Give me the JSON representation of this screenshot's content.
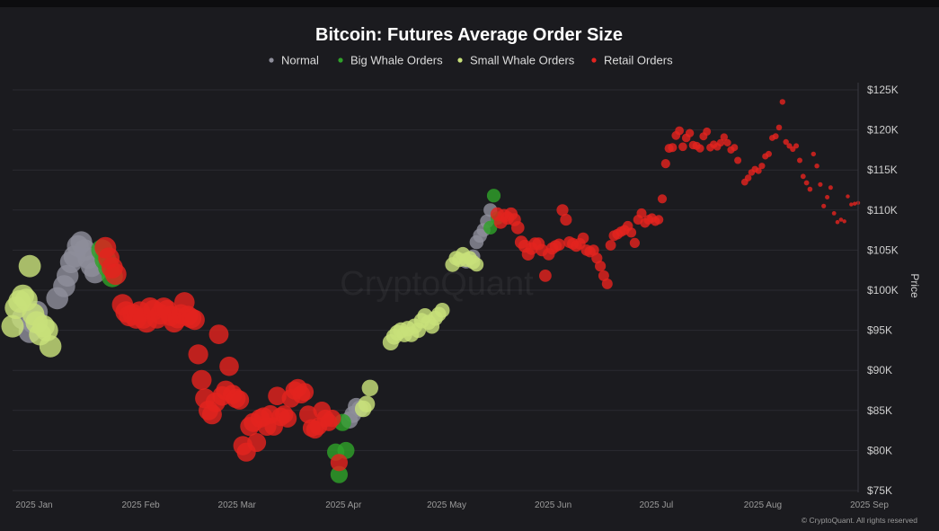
{
  "chart_data": {
    "type": "scatter",
    "title": "Bitcoin: Futures Average Order Size",
    "ylabel": "Price",
    "xlabel": "",
    "x_ticks": [
      "2025 Jan",
      "2025 Feb",
      "2025 Mar",
      "2025 Apr",
      "2025 May",
      "2025 Jun",
      "2025 Jul",
      "2025 Aug",
      "2025 Sep"
    ],
    "y_ticks": [
      "$125K",
      "$120K",
      "$115K",
      "$110K",
      "$105K",
      "$100K",
      "$95K",
      "$90K",
      "$85K",
      "$80K",
      "$75K"
    ],
    "x_range": [
      "2025-01-01",
      "2025-09-04"
    ],
    "y_range": [
      75000,
      125000
    ],
    "y_axis_position": "right",
    "grid": "horizontal",
    "legend_position": "top-center",
    "watermark": "CryptoQuant",
    "credit": "© CryptoQuant. All rights reserved",
    "series": [
      {
        "name": "Normal",
        "color": "#8e8e9a",
        "points": [
          [
            "2025-01-04",
            96500
          ],
          [
            "2025-01-06",
            94800
          ],
          [
            "2025-01-07",
            96000
          ],
          [
            "2025-01-08",
            97300
          ],
          [
            "2025-01-14",
            99000
          ],
          [
            "2025-01-16",
            100500
          ],
          [
            "2025-01-17",
            101800
          ],
          [
            "2025-01-18",
            103500
          ],
          [
            "2025-01-19",
            104200
          ],
          [
            "2025-01-20",
            105500
          ],
          [
            "2025-01-21",
            106000
          ],
          [
            "2025-01-22",
            105000
          ],
          [
            "2025-01-23",
            104000
          ],
          [
            "2025-01-24",
            103000
          ],
          [
            "2025-01-25",
            102200
          ],
          [
            "2025-04-09",
            83800
          ],
          [
            "2025-04-10",
            84500
          ],
          [
            "2025-04-11",
            85500
          ],
          [
            "2025-04-12",
            85200
          ],
          [
            "2025-05-13",
            103600
          ],
          [
            "2025-05-15",
            104200
          ],
          [
            "2025-05-16",
            106000
          ],
          [
            "2025-05-17",
            106800
          ],
          [
            "2025-05-18",
            107500
          ],
          [
            "2025-05-19",
            108600
          ],
          [
            "2025-05-20",
            110000
          ]
        ]
      },
      {
        "name": "Big Whale Orders",
        "color": "#2fa12a",
        "points": [
          [
            "2025-01-27",
            105000
          ],
          [
            "2025-01-28",
            103800
          ],
          [
            "2025-01-29",
            102800
          ],
          [
            "2025-01-30",
            101700
          ],
          [
            "2025-04-07",
            83500
          ],
          [
            "2025-04-05",
            79800
          ],
          [
            "2025-04-08",
            80000
          ],
          [
            "2025-04-06",
            77000
          ],
          [
            "2025-05-21",
            111800
          ],
          [
            "2025-05-22",
            109000
          ],
          [
            "2025-05-20",
            107800
          ]
        ]
      },
      {
        "name": "Small Whale Orders",
        "color": "#c8e07a",
        "points": [
          [
            "2025-01-01",
            95500
          ],
          [
            "2025-01-02",
            97800
          ],
          [
            "2025-01-03",
            98600
          ],
          [
            "2025-01-04",
            99300
          ],
          [
            "2025-01-05",
            98800
          ],
          [
            "2025-01-06",
            103000
          ],
          [
            "2025-01-07",
            97000
          ],
          [
            "2025-01-08",
            96000
          ],
          [
            "2025-01-09",
            94500
          ],
          [
            "2025-01-10",
            95500
          ],
          [
            "2025-01-11",
            95000
          ],
          [
            "2025-01-12",
            93000
          ],
          [
            "2025-04-13",
            85200
          ],
          [
            "2025-04-14",
            85800
          ],
          [
            "2025-04-15",
            87800
          ],
          [
            "2025-04-21",
            93500
          ],
          [
            "2025-04-22",
            94200
          ],
          [
            "2025-04-23",
            94700
          ],
          [
            "2025-04-24",
            95000
          ],
          [
            "2025-04-25",
            94500
          ],
          [
            "2025-04-26",
            95200
          ],
          [
            "2025-04-27",
            94500
          ],
          [
            "2025-04-28",
            95500
          ],
          [
            "2025-04-29",
            95000
          ],
          [
            "2025-04-30",
            96200
          ],
          [
            "2025-05-01",
            96800
          ],
          [
            "2025-05-02",
            96000
          ],
          [
            "2025-05-03",
            95500
          ],
          [
            "2025-05-04",
            96500
          ],
          [
            "2025-05-05",
            97000
          ],
          [
            "2025-05-06",
            97500
          ],
          [
            "2025-05-09",
            103200
          ],
          [
            "2025-05-10",
            104000
          ],
          [
            "2025-05-11",
            103800
          ],
          [
            "2025-05-12",
            104500
          ],
          [
            "2025-05-13",
            103800
          ],
          [
            "2025-05-14",
            104000
          ],
          [
            "2025-05-15",
            103500
          ],
          [
            "2025-05-16",
            103200
          ]
        ]
      },
      {
        "name": "Retail Orders",
        "color": "#e3231f",
        "points": [
          [
            "2025-01-28",
            105300
          ],
          [
            "2025-01-29",
            104000
          ],
          [
            "2025-01-30",
            102800
          ],
          [
            "2025-01-31",
            102000
          ],
          [
            "2025-02-02",
            98200
          ],
          [
            "2025-02-03",
            97300
          ],
          [
            "2025-02-04",
            96800
          ],
          [
            "2025-02-05",
            97000
          ],
          [
            "2025-02-06",
            96500
          ],
          [
            "2025-02-07",
            97300
          ],
          [
            "2025-02-08",
            96500
          ],
          [
            "2025-02-09",
            96000
          ],
          [
            "2025-02-10",
            97800
          ],
          [
            "2025-02-11",
            97500
          ],
          [
            "2025-02-12",
            96500
          ],
          [
            "2025-02-13",
            97000
          ],
          [
            "2025-02-14",
            97800
          ],
          [
            "2025-02-15",
            97500
          ],
          [
            "2025-02-16",
            96800
          ],
          [
            "2025-02-17",
            96000
          ],
          [
            "2025-02-18",
            96500
          ],
          [
            "2025-02-19",
            97000
          ],
          [
            "2025-02-20",
            98500
          ],
          [
            "2025-02-21",
            96800
          ],
          [
            "2025-02-22",
            96500
          ],
          [
            "2025-02-23",
            96300
          ],
          [
            "2025-02-24",
            92000
          ],
          [
            "2025-02-25",
            88800
          ],
          [
            "2025-02-26",
            86500
          ],
          [
            "2025-02-27",
            85000
          ],
          [
            "2025-02-28",
            84500
          ],
          [
            "2025-03-01",
            86000
          ],
          [
            "2025-03-02",
            94500
          ],
          [
            "2025-03-03",
            86800
          ],
          [
            "2025-03-04",
            87500
          ],
          [
            "2025-03-05",
            90500
          ],
          [
            "2025-03-06",
            87000
          ],
          [
            "2025-03-07",
            86500
          ],
          [
            "2025-03-08",
            86300
          ],
          [
            "2025-03-09",
            80600
          ],
          [
            "2025-03-10",
            79800
          ],
          [
            "2025-03-11",
            83000
          ],
          [
            "2025-03-12",
            83500
          ],
          [
            "2025-03-13",
            81000
          ],
          [
            "2025-03-14",
            84000
          ],
          [
            "2025-03-15",
            84200
          ],
          [
            "2025-03-16",
            83000
          ],
          [
            "2025-03-17",
            84500
          ],
          [
            "2025-03-18",
            83000
          ],
          [
            "2025-03-19",
            86800
          ],
          [
            "2025-03-20",
            84200
          ],
          [
            "2025-03-21",
            84500
          ],
          [
            "2025-03-22",
            84000
          ],
          [
            "2025-03-23",
            86500
          ],
          [
            "2025-03-24",
            87500
          ],
          [
            "2025-03-25",
            87800
          ],
          [
            "2025-03-26",
            87000
          ],
          [
            "2025-03-27",
            87300
          ],
          [
            "2025-03-28",
            84500
          ],
          [
            "2025-03-29",
            82800
          ],
          [
            "2025-03-30",
            82600
          ],
          [
            "2025-03-31",
            83000
          ],
          [
            "2025-04-01",
            85000
          ],
          [
            "2025-04-02",
            84000
          ],
          [
            "2025-04-03",
            83500
          ],
          [
            "2025-04-04",
            84000
          ],
          [
            "2025-04-06",
            78500
          ],
          [
            "2025-05-22",
            109500
          ],
          [
            "2025-05-23",
            108500
          ],
          [
            "2025-05-24",
            109300
          ],
          [
            "2025-05-25",
            109000
          ],
          [
            "2025-05-26",
            109500
          ],
          [
            "2025-05-27",
            108800
          ],
          [
            "2025-05-28",
            107800
          ],
          [
            "2025-05-29",
            106000
          ],
          [
            "2025-05-30",
            105500
          ],
          [
            "2025-05-31",
            104500
          ],
          [
            "2025-06-01",
            105200
          ],
          [
            "2025-06-02",
            105800
          ],
          [
            "2025-06-03",
            105800
          ],
          [
            "2025-06-04",
            105000
          ],
          [
            "2025-06-05",
            101800
          ],
          [
            "2025-06-06",
            104500
          ],
          [
            "2025-06-07",
            105200
          ],
          [
            "2025-06-08",
            105500
          ],
          [
            "2025-06-09",
            105700
          ],
          [
            "2025-06-10",
            110000
          ],
          [
            "2025-06-11",
            108800
          ],
          [
            "2025-06-12",
            106000
          ],
          [
            "2025-06-13",
            105800
          ],
          [
            "2025-06-14",
            105500
          ],
          [
            "2025-06-15",
            105800
          ],
          [
            "2025-06-16",
            106500
          ],
          [
            "2025-06-17",
            105000
          ],
          [
            "2025-06-18",
            104800
          ],
          [
            "2025-06-19",
            105000
          ],
          [
            "2025-06-20",
            104000
          ],
          [
            "2025-06-21",
            103000
          ],
          [
            "2025-06-22",
            101800
          ],
          [
            "2025-06-23",
            100800
          ],
          [
            "2025-06-24",
            105600
          ],
          [
            "2025-06-25",
            106800
          ],
          [
            "2025-06-26",
            107000
          ],
          [
            "2025-06-27",
            107300
          ],
          [
            "2025-06-28",
            107500
          ],
          [
            "2025-06-29",
            108000
          ],
          [
            "2025-06-30",
            107200
          ],
          [
            "2025-07-01",
            105900
          ],
          [
            "2025-07-02",
            108800
          ],
          [
            "2025-07-03",
            109600
          ],
          [
            "2025-07-04",
            108400
          ],
          [
            "2025-07-05",
            108800
          ],
          [
            "2025-07-06",
            109000
          ],
          [
            "2025-07-07",
            108600
          ],
          [
            "2025-07-08",
            108800
          ],
          [
            "2025-07-09",
            111400
          ],
          [
            "2025-07-10",
            115800
          ],
          [
            "2025-07-11",
            117700
          ],
          [
            "2025-07-12",
            117800
          ],
          [
            "2025-07-13",
            119300
          ],
          [
            "2025-07-14",
            119900
          ],
          [
            "2025-07-15",
            117900
          ],
          [
            "2025-07-16",
            119000
          ],
          [
            "2025-07-17",
            119600
          ],
          [
            "2025-07-18",
            118100
          ],
          [
            "2025-07-19",
            118000
          ],
          [
            "2025-07-20",
            117700
          ],
          [
            "2025-07-21",
            119200
          ],
          [
            "2025-07-22",
            119800
          ],
          [
            "2025-07-23",
            117800
          ],
          [
            "2025-07-24",
            118200
          ],
          [
            "2025-07-25",
            117900
          ],
          [
            "2025-07-26",
            118400
          ],
          [
            "2025-07-27",
            119100
          ],
          [
            "2025-07-28",
            118400
          ],
          [
            "2025-07-29",
            117500
          ],
          [
            "2025-07-30",
            117800
          ],
          [
            "2025-07-31",
            116200
          ],
          [
            "2025-08-02",
            113500
          ],
          [
            "2025-08-03",
            114000
          ],
          [
            "2025-08-04",
            114700
          ],
          [
            "2025-08-05",
            115100
          ],
          [
            "2025-08-06",
            114900
          ],
          [
            "2025-08-07",
            115500
          ],
          [
            "2025-08-08",
            116700
          ],
          [
            "2025-08-09",
            117000
          ],
          [
            "2025-08-10",
            119000
          ],
          [
            "2025-08-11",
            119200
          ],
          [
            "2025-08-12",
            120300
          ],
          [
            "2025-08-13",
            123500
          ],
          [
            "2025-08-14",
            118500
          ],
          [
            "2025-08-15",
            118000
          ],
          [
            "2025-08-16",
            117600
          ],
          [
            "2025-08-17",
            118000
          ],
          [
            "2025-08-18",
            116200
          ],
          [
            "2025-08-19",
            114200
          ],
          [
            "2025-08-20",
            113400
          ],
          [
            "2025-08-21",
            112600
          ],
          [
            "2025-08-22",
            117000
          ],
          [
            "2025-08-23",
            115500
          ],
          [
            "2025-08-24",
            113200
          ],
          [
            "2025-08-25",
            110500
          ],
          [
            "2025-08-26",
            111600
          ],
          [
            "2025-08-27",
            112800
          ],
          [
            "2025-08-28",
            109600
          ],
          [
            "2025-08-29",
            108500
          ],
          [
            "2025-08-30",
            108800
          ],
          [
            "2025-08-31",
            108600
          ],
          [
            "2025-09-01",
            111700
          ],
          [
            "2025-09-02",
            110700
          ],
          [
            "2025-09-03",
            110800
          ],
          [
            "2025-09-04",
            110900
          ]
        ]
      }
    ]
  }
}
